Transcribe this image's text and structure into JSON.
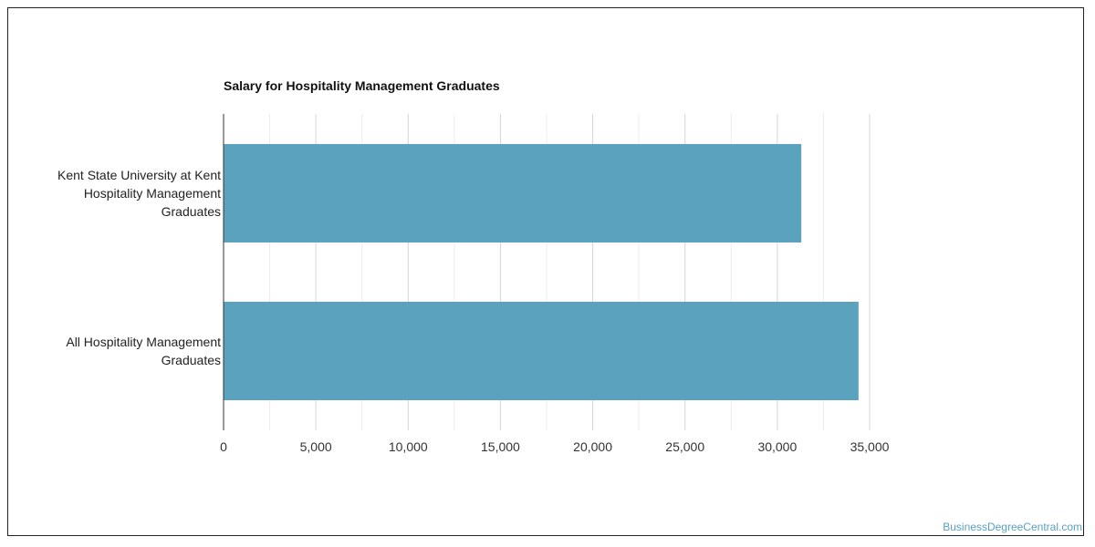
{
  "chart_data": {
    "type": "bar",
    "orientation": "horizontal",
    "title": "Salary for Hospitality Management Graduates",
    "categories": [
      [
        "Kent State University at Kent",
        "Hospitality Management",
        "Graduates"
      ],
      [
        "All Hospitality Management",
        "Graduates"
      ]
    ],
    "values": [
      31300,
      34400
    ],
    "xlim": [
      0,
      35000
    ],
    "xticks": [
      "0",
      "5,000",
      "10,000",
      "15,000",
      "20,000",
      "25,000",
      "30,000",
      "35,000"
    ],
    "grid": true,
    "bar_color": "#5ba2bf"
  },
  "watermark": "BusinessDegreeCentral.com"
}
